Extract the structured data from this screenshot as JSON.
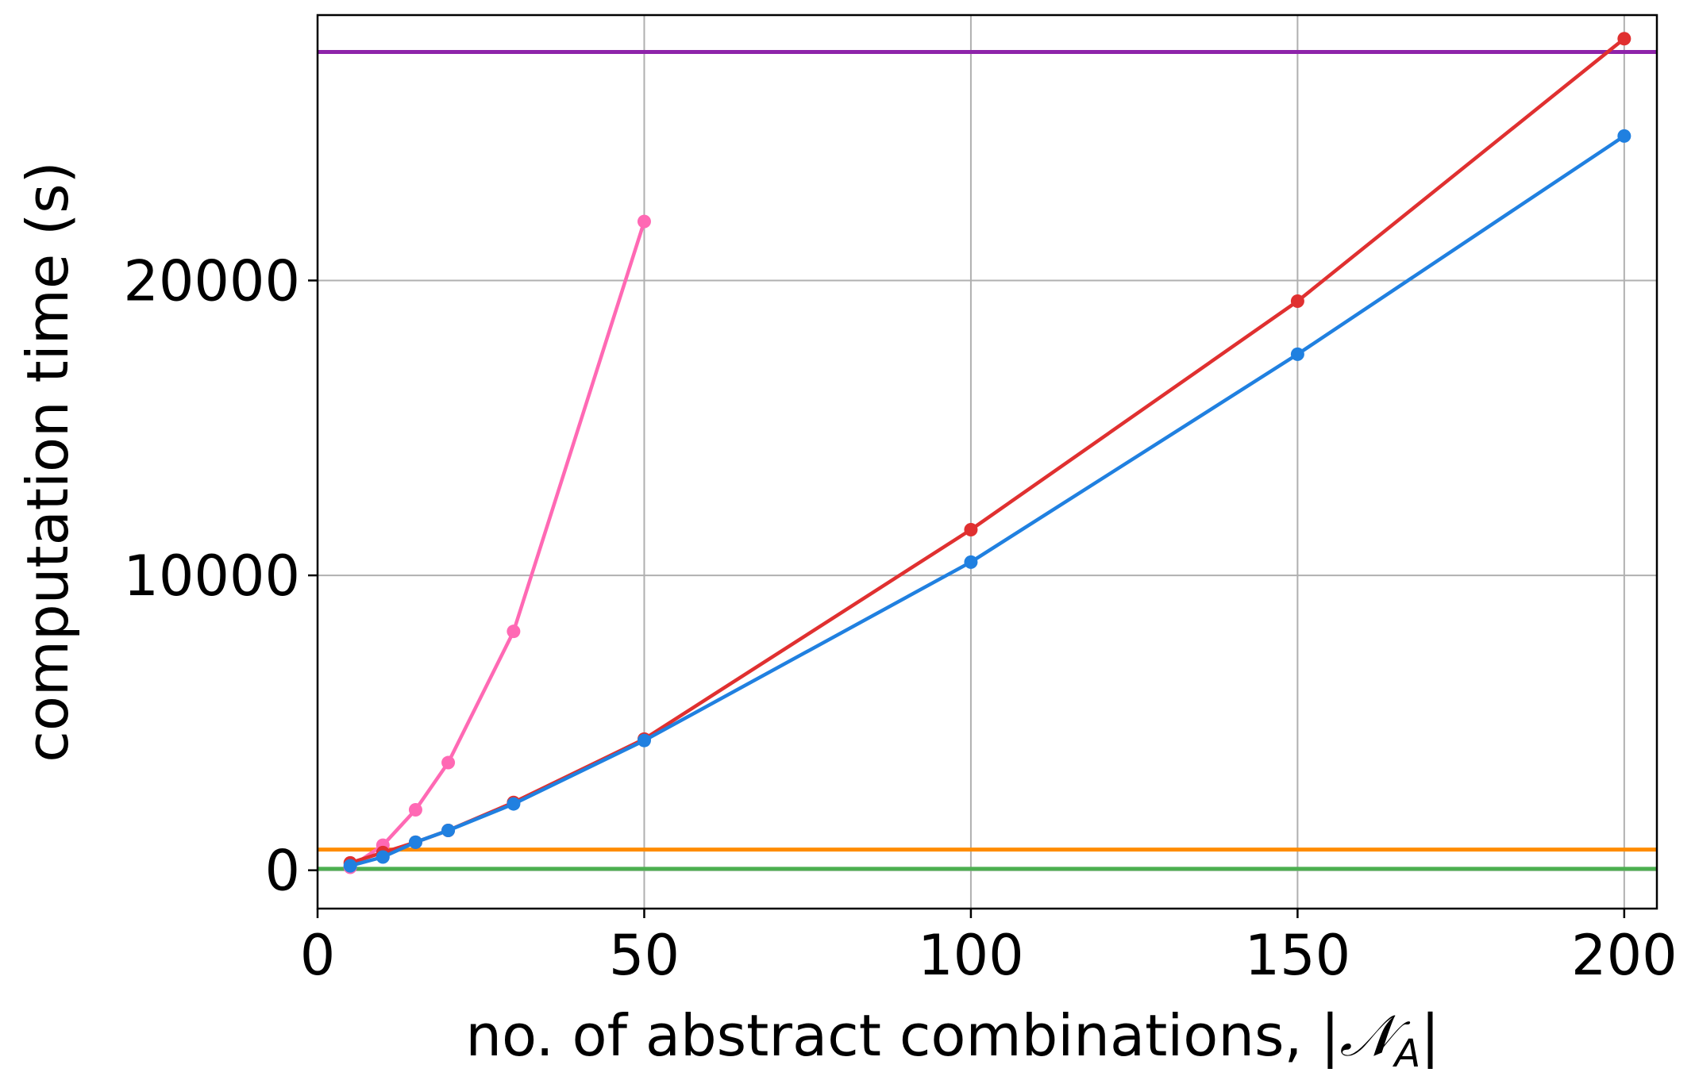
{
  "chart_data": {
    "type": "line",
    "title": "",
    "xlabel": "no. of abstract combinations, |𝒩_A|",
    "xlabel_main": "no. of abstract combinations, |",
    "xlabel_symbol": "𝒩",
    "xlabel_sub": "A",
    "xlabel_close": "|",
    "ylabel": "computation time (s)",
    "xlim": [
      0,
      205
    ],
    "ylim": [
      -1300,
      29000
    ],
    "xticks": [
      0,
      50,
      100,
      150,
      200
    ],
    "yticks": [
      0,
      10000,
      20000
    ],
    "grid": true,
    "series": [
      {
        "color": "#ff69b4",
        "marker": "circle",
        "x": [
          5,
          10,
          15,
          20,
          30,
          50
        ],
        "y": [
          100,
          850,
          2050,
          3650,
          8100,
          22000
        ]
      },
      {
        "color": "#e03030",
        "marker": "circle",
        "x": [
          5,
          10,
          15,
          20,
          30,
          50,
          100,
          150,
          200
        ],
        "y": [
          250,
          600,
          950,
          1350,
          2300,
          4450,
          11550,
          19300,
          28200
        ]
      },
      {
        "color": "#2080e0",
        "marker": "circle",
        "x": [
          5,
          10,
          15,
          20,
          30,
          50,
          100,
          150,
          200
        ],
        "y": [
          150,
          450,
          950,
          1350,
          2250,
          4400,
          10450,
          17500,
          24900
        ]
      }
    ],
    "hlines": [
      {
        "color": "#8e24aa",
        "y": 27750
      },
      {
        "color": "#ff8c00",
        "y": 700
      },
      {
        "color": "#4caf50",
        "y": 50
      }
    ]
  }
}
